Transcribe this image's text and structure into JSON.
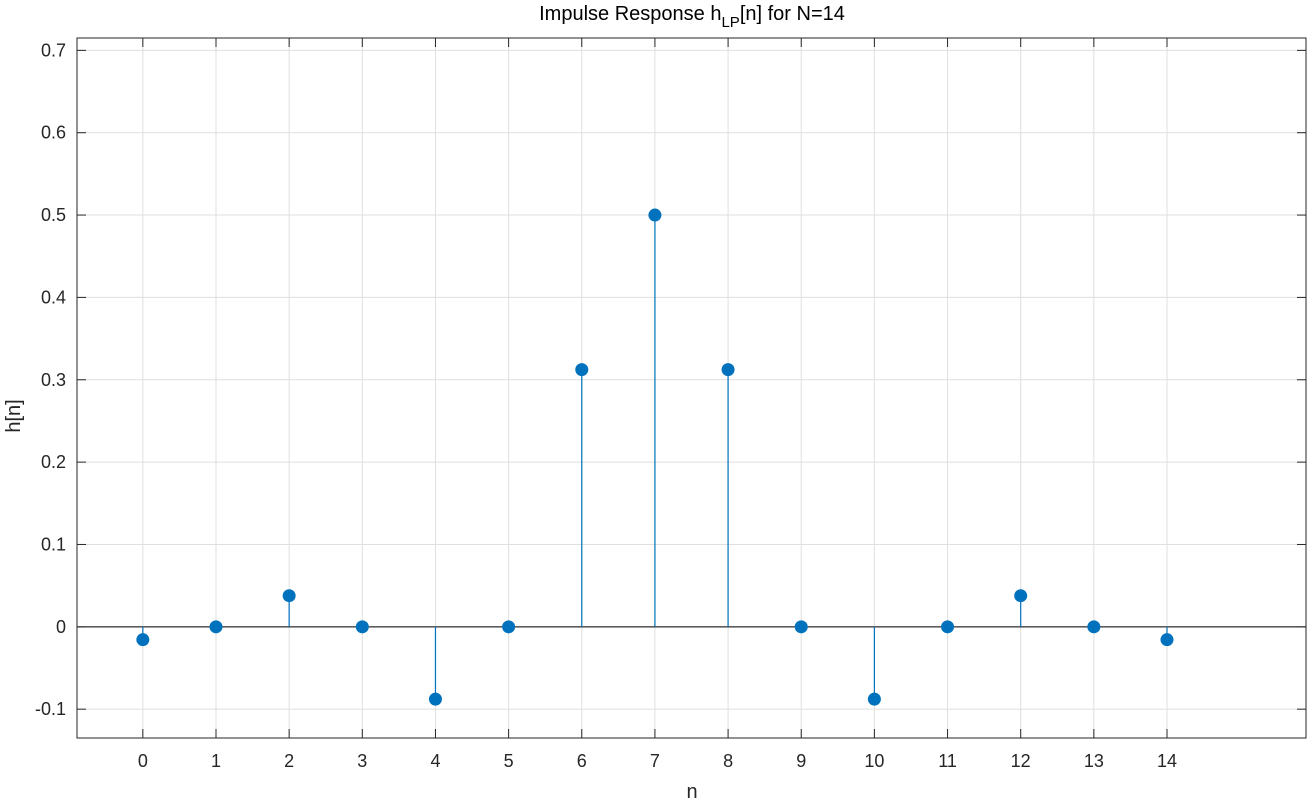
{
  "chart_data": {
    "type": "stem",
    "title": {
      "main": "Impulse Response h",
      "sub": "LP",
      "rest": "[n] for N=14"
    },
    "xlabel": "n",
    "ylabel": "h[n]",
    "x": [
      0,
      1,
      2,
      3,
      4,
      5,
      6,
      7,
      8,
      9,
      10,
      11,
      12,
      13,
      14
    ],
    "values": [
      -0.0156,
      0,
      0.0378,
      0,
      -0.0878,
      0,
      0.3123,
      0.5,
      0.3123,
      0,
      -0.0878,
      0,
      0.0378,
      0,
      -0.0156
    ],
    "xlim": [
      -0.9,
      15.9
    ],
    "ylim": [
      -0.135,
      0.715
    ],
    "xticks": [
      "0",
      "1",
      "2",
      "3",
      "4",
      "5",
      "6",
      "7",
      "8",
      "9",
      "10",
      "11",
      "12",
      "13",
      "14"
    ],
    "yticks": [
      "-0.1",
      "0",
      "0.1",
      "0.2",
      "0.3",
      "0.4",
      "0.5",
      "0.6",
      "0.7"
    ],
    "grid": true,
    "color": "#0072BD"
  }
}
